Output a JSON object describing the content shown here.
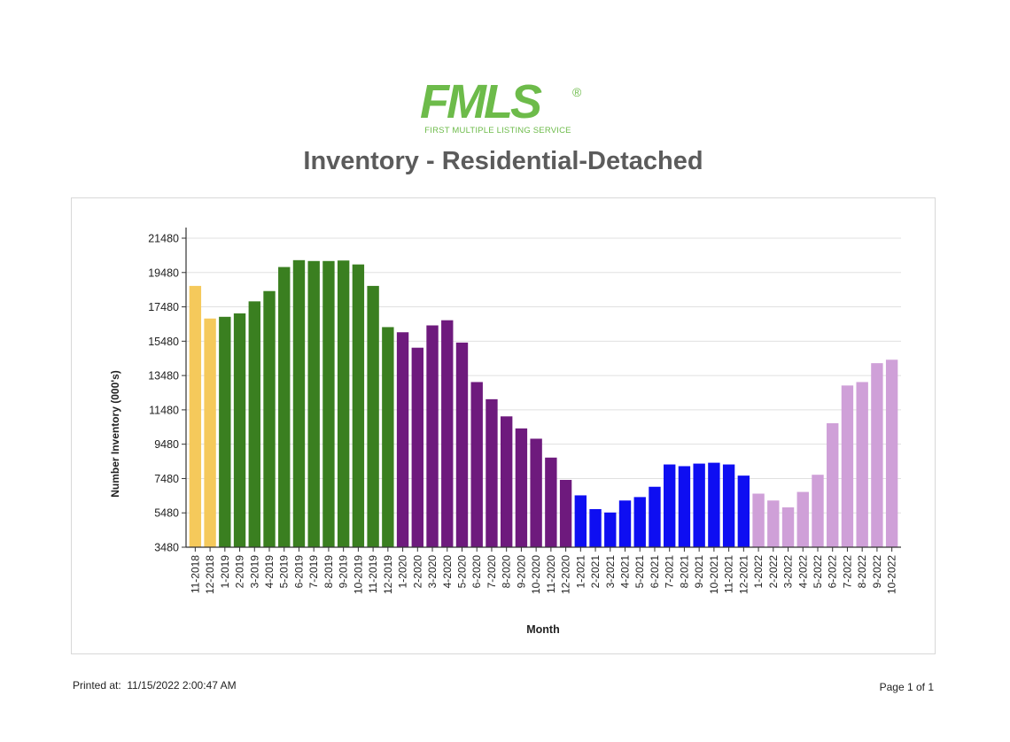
{
  "logo": {
    "main_text": "FMLS",
    "registered_mark": "®",
    "sub_text": "FIRST MULTIPLE LISTING SERVICE"
  },
  "header": {
    "title": "Inventory - Residential-Detached"
  },
  "footer": {
    "printed_label": "Printed at:",
    "printed_value": "11/15/2022 2:00:47 AM",
    "page_label": "Page 1 of 1"
  },
  "chart_data": {
    "type": "bar",
    "title": "",
    "xlabel": "Month",
    "ylabel": "Number Inventory (000's)",
    "ylim": [
      3480,
      21480
    ],
    "yticks": [
      3480,
      5480,
      7480,
      9480,
      11480,
      13480,
      15480,
      17480,
      19480,
      21480
    ],
    "grid": true,
    "categories": [
      "11-2018",
      "12-2018",
      "1-2019",
      "2-2019",
      "3-2019",
      "4-2019",
      "5-2019",
      "6-2019",
      "7-2019",
      "8-2019",
      "9-2019",
      "10-2019",
      "11-2019",
      "12-2019",
      "1-2020",
      "2-2020",
      "3-2020",
      "4-2020",
      "5-2020",
      "6-2020",
      "7-2020",
      "8-2020",
      "9-2020",
      "10-2020",
      "11-2020",
      "12-2020",
      "1-2021",
      "2-2021",
      "3-2021",
      "4-2021",
      "5-2021",
      "6-2021",
      "7-2021",
      "8-2021",
      "9-2021",
      "10-2021",
      "11-2021",
      "12-2021",
      "1-2022",
      "2-2022",
      "3-2022",
      "4-2022",
      "5-2022",
      "6-2022",
      "7-2022",
      "8-2022",
      "9-2022",
      "10-2022"
    ],
    "values": [
      18700,
      16800,
      16900,
      17100,
      17800,
      18400,
      19800,
      20200,
      20150,
      20150,
      20180,
      19950,
      18700,
      16300,
      16000,
      15100,
      16400,
      16700,
      15400,
      13100,
      12100,
      11100,
      10400,
      9800,
      8700,
      7400,
      6500,
      5700,
      5500,
      6200,
      6400,
      7000,
      8300,
      8200,
      8350,
      8400,
      8300,
      7650,
      6600,
      6200,
      5800,
      6700,
      7700,
      10700,
      12900,
      13100,
      14200,
      14400
    ],
    "year_colors": {
      "2018": "#f5c95b",
      "2019": "#3a7f20",
      "2020": "#6e1a7d",
      "2021": "#0e0ef2",
      "2022": "#cfa0d8"
    },
    "gridline_color": "#e0e0e0",
    "axis_color": "#333333"
  }
}
